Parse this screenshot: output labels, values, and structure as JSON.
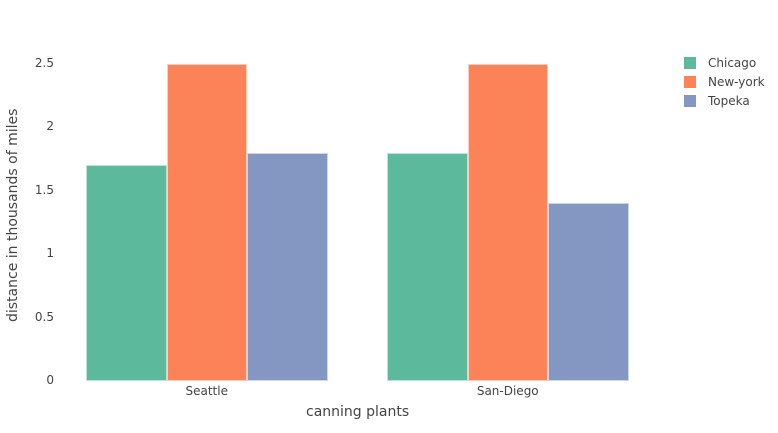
{
  "chart_data": {
    "type": "bar",
    "title": "",
    "xlabel": "canning plants",
    "ylabel": "distance in thousands of miles",
    "categories": [
      "Seattle",
      "San-Diego"
    ],
    "series": [
      {
        "name": "Chicago",
        "values": [
          1.7,
          1.8
        ],
        "color": "#5cb99b"
      },
      {
        "name": "New-york",
        "values": [
          2.5,
          2.5
        ],
        "color": "#fc8358"
      },
      {
        "name": "Topeka",
        "values": [
          1.8,
          1.4
        ],
        "color": "#8497c2"
      }
    ],
    "ylim": [
      0,
      2.5
    ],
    "yticks": [
      "0",
      "0.5",
      "1",
      "1.5",
      "2",
      "2.5"
    ],
    "grid": false,
    "legend_position": "top-right"
  }
}
